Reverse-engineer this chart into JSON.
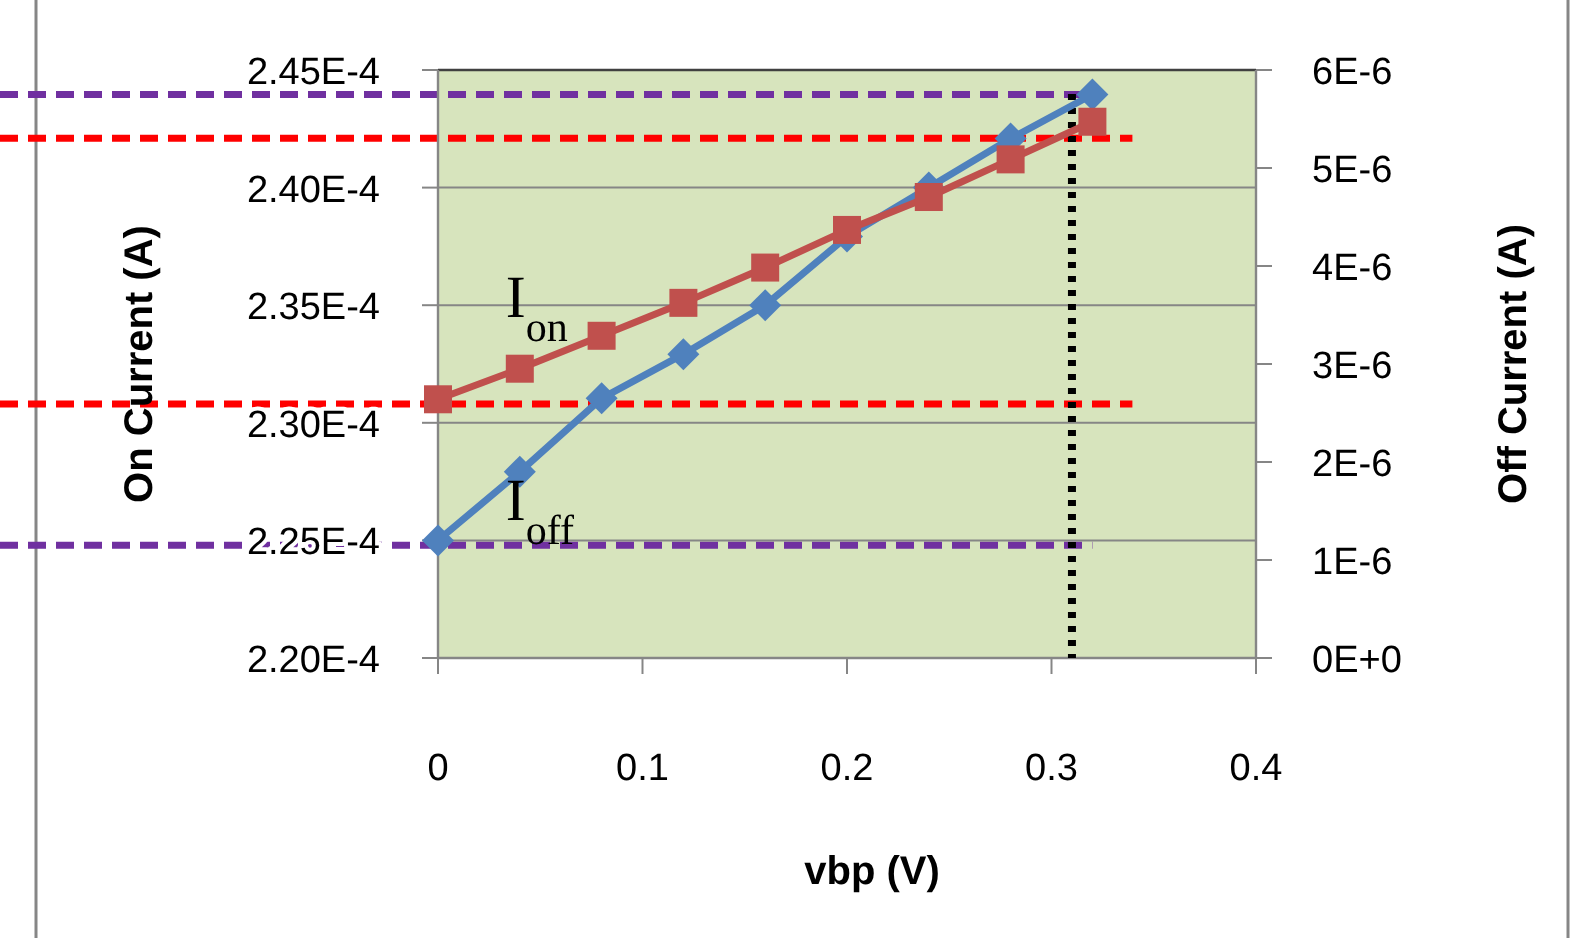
{
  "chart_data": {
    "type": "line",
    "xlabel": "vbp (V)",
    "ylabel": "On Current (A)",
    "y2label": "Off Current (A)",
    "xlim": [
      0,
      0.4
    ],
    "xticks": [
      0,
      0.1,
      0.2,
      0.3,
      0.4
    ],
    "ylim": [
      0.00022,
      0.000245
    ],
    "yticks": [
      {
        "value": 0.00022,
        "label": "2.20E-4"
      },
      {
        "value": 0.000225,
        "label": "2.25E-4"
      },
      {
        "value": 0.00023,
        "label": "2.30E-4"
      },
      {
        "value": 0.000235,
        "label": "2.35E-4"
      },
      {
        "value": 0.00024,
        "label": "2.40E-4"
      },
      {
        "value": 0.000245,
        "label": "2.45E-4"
      }
    ],
    "y2lim": [
      0,
      6e-06
    ],
    "y2ticks": [
      {
        "value": 0,
        "label": "0E+0"
      },
      {
        "value": 1e-06,
        "label": "1E-6"
      },
      {
        "value": 2e-06,
        "label": "2E-6"
      },
      {
        "value": 3e-06,
        "label": "3E-6"
      },
      {
        "value": 4e-06,
        "label": "4E-6"
      },
      {
        "value": 5e-06,
        "label": "5E-6"
      },
      {
        "value": 6e-06,
        "label": "6E-6"
      }
    ],
    "grid": "y",
    "line_style": "solid",
    "x": [
      0,
      0.04,
      0.08,
      0.12,
      0.16,
      0.2,
      0.24,
      0.28,
      0.32
    ],
    "series": [
      {
        "name": "I$_{on}$",
        "color": "#c0504d",
        "marker": "square",
        "values": [
          0.000231,
          0.0002323,
          0.0002337,
          0.0002351,
          0.0002366,
          0.0002382,
          0.0002396,
          0.0002412,
          0.0002428
        ]
      },
      {
        "name": "I$_{off}$",
        "color": "#4f81bd",
        "marker": "diamond",
        "axis": "y2",
        "values": [
          1.2e-06,
          1.9e-06,
          2.65e-06,
          3.1e-06,
          3.6e-06,
          4.3e-06,
          4.8e-06,
          5.3e-06,
          5.75e-06
        ]
      }
    ],
    "ref_lines": [
      {
        "axis": "y2",
        "value": 5.75e-06,
        "color": "#7030a0",
        "line_style": "dashed"
      },
      {
        "axis": "y",
        "value": 0.0002421,
        "color": "#ff0000",
        "line_style": "dashed"
      },
      {
        "axis": "y",
        "value": 0.0002308,
        "color": "#ff0000",
        "line_style": "dashed"
      },
      {
        "axis": "y2",
        "value": 1.15e-06,
        "color": "#7030a0",
        "line_style": "dashed"
      },
      {
        "axis": "x",
        "value": 0.31,
        "color": "#000000",
        "line_style": "dotted"
      }
    ]
  }
}
